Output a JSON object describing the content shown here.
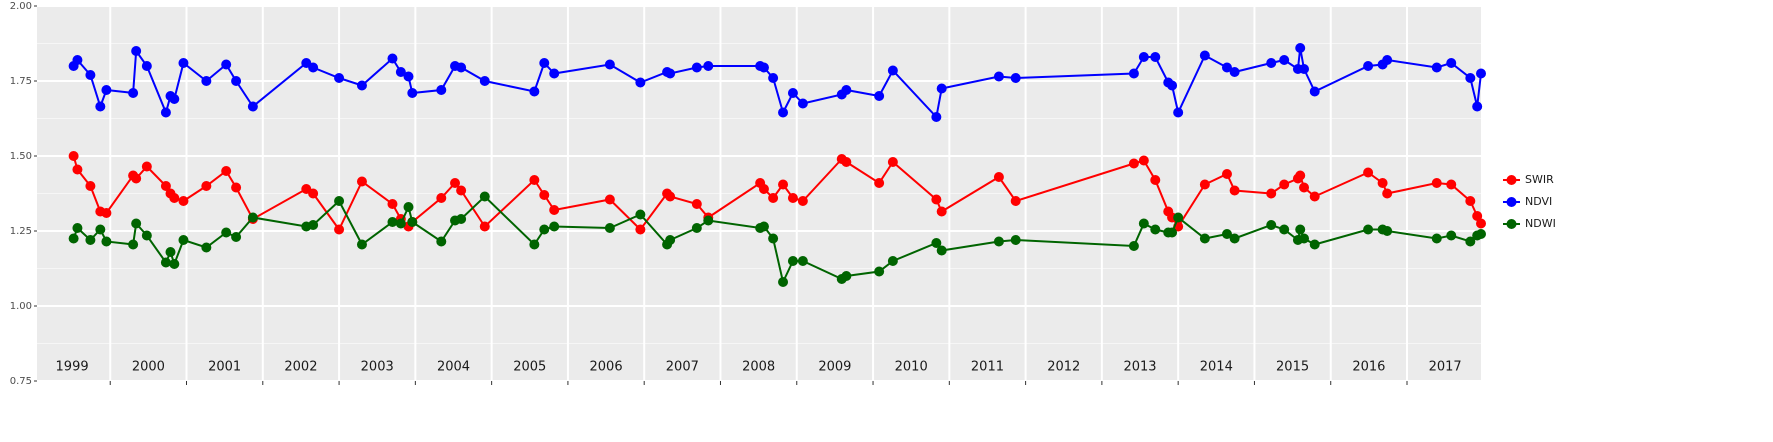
{
  "chart_data": {
    "type": "line",
    "x": [
      1999.52,
      1999.57,
      1999.74,
      1999.87,
      1999.95,
      2000.3,
      2000.34,
      2000.48,
      2000.73,
      2000.79,
      2000.84,
      2000.96,
      2001.26,
      2001.52,
      2001.65,
      2001.87,
      2002.57,
      2002.66,
      2003.0,
      2003.3,
      2003.7,
      2003.81,
      2003.91,
      2003.96,
      2004.34,
      2004.52,
      2004.6,
      2004.91,
      2005.56,
      2005.69,
      2005.82,
      2006.55,
      2006.95,
      2007.3,
      2007.34,
      2007.69,
      2007.84,
      2008.52,
      2008.57,
      2008.69,
      2008.82,
      2008.95,
      2009.08,
      2009.59,
      2009.65,
      2010.08,
      2010.26,
      2010.83,
      2010.9,
      2011.65,
      2011.87,
      2013.42,
      2013.55,
      2013.7,
      2013.87,
      2013.92,
      2014.0,
      2014.35,
      2014.64,
      2014.74,
      2015.22,
      2015.39,
      2015.57,
      2015.6,
      2015.65,
      2015.79,
      2016.49,
      2016.68,
      2016.74,
      2017.39,
      2017.58,
      2017.83,
      2017.92,
      2017.97
    ],
    "series": [
      {
        "name": "SWIR",
        "color": "#ff0000",
        "values": [
          1.5,
          1.455,
          1.4,
          1.315,
          1.31,
          1.435,
          1.425,
          1.465,
          1.4,
          1.375,
          1.36,
          1.35,
          1.4,
          1.45,
          1.395,
          1.29,
          1.39,
          1.375,
          1.255,
          1.415,
          1.34,
          1.29,
          1.265,
          1.28,
          1.36,
          1.41,
          1.385,
          1.265,
          1.42,
          1.37,
          1.32,
          1.355,
          1.255,
          1.375,
          1.365,
          1.34,
          1.295,
          1.41,
          1.39,
          1.36,
          1.405,
          1.36,
          1.35,
          1.49,
          1.48,
          1.41,
          1.48,
          1.355,
          1.315,
          1.43,
          1.35,
          1.475,
          1.485,
          1.42,
          1.315,
          1.295,
          1.265,
          1.405,
          1.44,
          1.385,
          1.375,
          1.405,
          1.425,
          1.435,
          1.395,
          1.365,
          1.445,
          1.41,
          1.375,
          1.41,
          1.405,
          1.35,
          1.3,
          1.275
        ]
      },
      {
        "name": "NDVI",
        "color": "#0000ff",
        "values": [
          1.8,
          1.82,
          1.77,
          1.665,
          1.72,
          1.71,
          1.85,
          1.8,
          1.645,
          1.7,
          1.69,
          1.81,
          1.75,
          1.805,
          1.75,
          1.665,
          1.81,
          1.795,
          1.76,
          1.735,
          1.825,
          1.78,
          1.765,
          1.71,
          1.72,
          1.8,
          1.795,
          1.75,
          1.715,
          1.81,
          1.775,
          1.805,
          1.745,
          1.78,
          1.775,
          1.795,
          1.8,
          1.8,
          1.795,
          1.76,
          1.645,
          1.71,
          1.675,
          1.705,
          1.72,
          1.7,
          1.785,
          1.63,
          1.725,
          1.765,
          1.76,
          1.775,
          1.83,
          1.83,
          1.745,
          1.735,
          1.645,
          1.835,
          1.795,
          1.78,
          1.81,
          1.82,
          1.79,
          1.86,
          1.79,
          1.715,
          1.8,
          1.805,
          1.82,
          1.795,
          1.81,
          1.76,
          1.665,
          1.775
        ]
      },
      {
        "name": "NDWI",
        "color": "#006400",
        "values": [
          1.225,
          1.26,
          1.22,
          1.255,
          1.215,
          1.205,
          1.275,
          1.235,
          1.145,
          1.18,
          1.14,
          1.22,
          1.195,
          1.245,
          1.23,
          1.295,
          1.265,
          1.27,
          1.35,
          1.205,
          1.28,
          1.275,
          1.33,
          1.28,
          1.215,
          1.285,
          1.29,
          1.365,
          1.205,
          1.255,
          1.265,
          1.26,
          1.305,
          1.205,
          1.22,
          1.26,
          1.285,
          1.26,
          1.265,
          1.225,
          1.08,
          1.15,
          1.15,
          1.09,
          1.1,
          1.115,
          1.15,
          1.21,
          1.185,
          1.215,
          1.22,
          1.2,
          1.275,
          1.255,
          1.245,
          1.245,
          1.295,
          1.225,
          1.24,
          1.225,
          1.27,
          1.255,
          1.22,
          1.255,
          1.225,
          1.205,
          1.255,
          1.255,
          1.25,
          1.225,
          1.235,
          1.215,
          1.235,
          1.24
        ]
      }
    ],
    "xlim": [
      1999.04,
      2017.97
    ],
    "xticks": [
      {
        "value": 1999.5,
        "label": "1999"
      },
      {
        "value": 2000.5,
        "label": "2000"
      },
      {
        "value": 2001.5,
        "label": "2001"
      },
      {
        "value": 2002.5,
        "label": "2002"
      },
      {
        "value": 2003.5,
        "label": "2003"
      },
      {
        "value": 2004.5,
        "label": "2004"
      },
      {
        "value": 2005.5,
        "label": "2005"
      },
      {
        "value": 2006.5,
        "label": "2006"
      },
      {
        "value": 2007.5,
        "label": "2007"
      },
      {
        "value": 2008.5,
        "label": "2008"
      },
      {
        "value": 2009.5,
        "label": "2009"
      },
      {
        "value": 2010.5,
        "label": "2010"
      },
      {
        "value": 2011.5,
        "label": "2011"
      },
      {
        "value": 2012.5,
        "label": "2012"
      },
      {
        "value": 2013.5,
        "label": "2013"
      },
      {
        "value": 2014.5,
        "label": "2014"
      },
      {
        "value": 2015.5,
        "label": "2015"
      },
      {
        "value": 2016.5,
        "label": "2016"
      },
      {
        "value": 2017.5,
        "label": "2017"
      }
    ],
    "xgrid": [
      2000,
      2001,
      2002,
      2003,
      2004,
      2005,
      2006,
      2007,
      2008,
      2009,
      2010,
      2011,
      2012,
      2013,
      2014,
      2015,
      2016,
      2017
    ],
    "ylim": [
      0.75,
      2
    ],
    "yticks": [
      {
        "value": 0.75,
        "label": "0.75"
      },
      {
        "value": 1,
        "label": "1.00"
      },
      {
        "value": 1.25,
        "label": "1.25"
      },
      {
        "value": 1.5,
        "label": "1.50"
      },
      {
        "value": 1.75,
        "label": "1.75"
      },
      {
        "value": 2,
        "label": "2.00"
      }
    ],
    "grid": true,
    "legend": "right"
  }
}
